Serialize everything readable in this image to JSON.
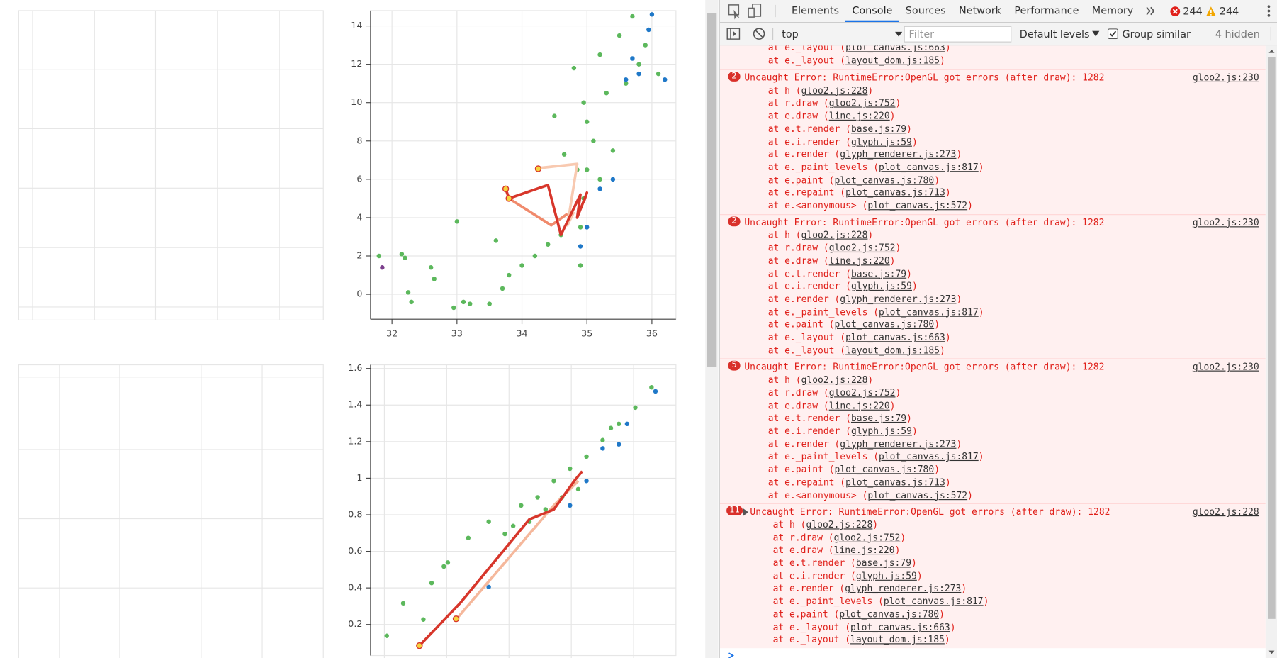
{
  "chart_data": [
    {
      "type": "scatter",
      "xlim": [
        31.67,
        36.37
      ],
      "ylim": [
        -1.3,
        14.8
      ],
      "xticks": [
        32,
        33,
        34,
        35,
        36
      ],
      "yticks": [
        0,
        2,
        4,
        6,
        8,
        10,
        12,
        14
      ],
      "grid": true,
      "series": [
        {
          "style": "points",
          "color": "#5cb85c",
          "x": [
            31.8,
            32.15,
            32.2,
            32.25,
            32.3,
            32.6,
            32.65,
            32.95,
            33.0,
            33.1,
            33.2,
            33.5,
            33.6,
            33.7,
            33.8,
            34.0,
            34.2,
            34.4,
            34.5,
            34.6,
            34.65,
            34.8,
            34.85,
            34.9,
            34.9,
            34.95,
            35.0,
            35.1,
            35.2,
            35.3,
            35.4,
            35.5,
            35.6,
            35.7,
            35.8,
            35.9,
            36.1,
            35.0,
            34.95,
            35.2
          ],
          "values": [
            2.0,
            2.1,
            1.9,
            0.1,
            -0.4,
            1.4,
            0.8,
            -0.7,
            3.8,
            -0.4,
            -0.5,
            -0.5,
            2.8,
            0.3,
            1.0,
            1.5,
            2.0,
            2.6,
            9.3,
            3.1,
            7.3,
            11.8,
            6.5,
            1.5,
            3.5,
            5.0,
            9.0,
            8.0,
            12.5,
            10.5,
            7.5,
            13.5,
            11.0,
            14.5,
            12.0,
            13.0,
            11.5,
            6.5,
            10.0,
            6.0
          ]
        },
        {
          "style": "points",
          "color": "#1f78c8",
          "x": [
            34.9,
            35.0,
            35.2,
            35.4,
            35.6,
            35.8,
            35.95,
            36.0,
            36.2,
            35.7
          ],
          "values": [
            2.5,
            3.5,
            5.5,
            6.0,
            11.2,
            11.5,
            13.8,
            14.6,
            11.2,
            12.3
          ]
        },
        {
          "style": "points",
          "color": "#7b3f8c",
          "x": [
            31.85
          ],
          "values": [
            1.4
          ]
        },
        {
          "style": "line",
          "color": "#f8c9b0",
          "x": [
            34.3,
            34.85,
            34.7,
            34.8
          ],
          "values": [
            6.6,
            6.8,
            3.6,
            4.3
          ]
        },
        {
          "style": "line",
          "color": "#f08a6c",
          "x": [
            33.8,
            34.45,
            34.7
          ],
          "values": [
            5.0,
            3.6,
            4.2
          ]
        },
        {
          "style": "line",
          "color": "#d7362b",
          "x": [
            33.75,
            33.8,
            34.4,
            34.6,
            34.9,
            34.85,
            35.0,
            34.95
          ],
          "values": [
            5.5,
            5.0,
            5.7,
            3.1,
            5.2,
            4.0,
            5.3,
            4.8
          ]
        },
        {
          "style": "points",
          "color": "#f7d33c",
          "edge": "#d7362b",
          "x": [
            33.75,
            33.8,
            34.25
          ],
          "values": [
            5.5,
            5.0,
            6.55
          ]
        }
      ]
    },
    {
      "type": "scatter",
      "xlim": [
        0,
        1
      ],
      "ylim": [
        0.03,
        1.62
      ],
      "yticks": [
        0.2,
        0.4,
        0.6,
        0.8,
        1,
        1.2,
        1.4,
        1.6
      ],
      "grid": true,
      "series": [
        {
          "style": "points",
          "color": "#5cb85c",
          "x": [
            0.053,
            0.107,
            0.173,
            0.2,
            0.253,
            0.32,
            0.387,
            0.44,
            0.493,
            0.547,
            0.6,
            0.653,
            0.707,
            0.76,
            0.813,
            0.867,
            0.92,
            0.52,
            0.573,
            0.627,
            0.68,
            0.24,
            0.467,
            0.787
          ],
          "values": [
            0.138,
            0.316,
            0.227,
            0.427,
            0.539,
            0.673,
            0.762,
            0.695,
            0.851,
            0.895,
            0.985,
            1.052,
            1.118,
            1.208,
            1.297,
            1.386,
            1.497,
            0.762,
            0.829,
            0.895,
            0.94,
            0.517,
            0.739,
            1.274
          ]
        },
        {
          "style": "points",
          "color": "#1f78c8",
          "x": [
            0.387,
            0.653,
            0.707,
            0.76,
            0.84,
            0.933,
            0.813
          ],
          "values": [
            0.405,
            0.851,
            0.985,
            1.163,
            1.297,
            1.475,
            1.185
          ]
        },
        {
          "style": "line",
          "color": "#f5b89c",
          "x": [
            0.28,
            0.44,
            0.6,
            0.68
          ],
          "values": [
            0.227,
            0.539,
            0.851,
            0.985
          ]
        },
        {
          "style": "line",
          "color": "#d7362b",
          "x": [
            0.16,
            0.293,
            0.52,
            0.6,
            0.667,
            0.693
          ],
          "values": [
            0.084,
            0.316,
            0.775,
            0.829,
            0.985,
            1.038
          ]
        },
        {
          "style": "points",
          "color": "#f7d33c",
          "edge": "#d7362b",
          "x": [
            0.16,
            0.28
          ],
          "values": [
            0.084,
            0.231
          ]
        }
      ]
    }
  ],
  "devtools": {
    "tabs": [
      "Elements",
      "Console",
      "Sources",
      "Network",
      "Performance",
      "Memory"
    ],
    "active_tab": "Console",
    "error_count": "244",
    "warning_count": "244",
    "context": "top",
    "filter_placeholder": "Filter",
    "levels": "Default levels",
    "group_similar": "Group similar",
    "hidden": "4 hidden",
    "partial_stack": [
      {
        "call": "at e._layout (",
        "file": "plot_canvas.js:663",
        "end": ")"
      },
      {
        "call": "at e._layout (",
        "file": "layout_dom.js:185",
        "end": ")"
      }
    ],
    "messages": [
      {
        "count": "2",
        "text": "Uncaught Error: RuntimeError:OpenGL got errors (after draw): 1282",
        "source": "gloo2.js:230",
        "stack": [
          {
            "call": "at h (",
            "file": "gloo2.js:228",
            "end": ")"
          },
          {
            "call": "at r.draw (",
            "file": "gloo2.js:752",
            "end": ")"
          },
          {
            "call": "at e.draw (",
            "file": "line.js:220",
            "end": ")"
          },
          {
            "call": "at e.t.render (",
            "file": "base.js:79",
            "end": ")"
          },
          {
            "call": "at e.i.render (",
            "file": "glyph.js:59",
            "end": ")"
          },
          {
            "call": "at e.render (",
            "file": "glyph_renderer.js:273",
            "end": ")"
          },
          {
            "call": "at e._paint_levels (",
            "file": "plot_canvas.js:817",
            "end": ")"
          },
          {
            "call": "at e.paint (",
            "file": "plot_canvas.js:780",
            "end": ")"
          },
          {
            "call": "at e.repaint (",
            "file": "plot_canvas.js:713",
            "end": ")"
          },
          {
            "call": "at e.<anonymous> (",
            "file": "plot_canvas.js:572",
            "end": ")"
          }
        ]
      },
      {
        "count": "2",
        "text": "Uncaught Error: RuntimeError:OpenGL got errors (after draw): 1282",
        "source": "gloo2.js:230",
        "stack": [
          {
            "call": "at h (",
            "file": "gloo2.js:228",
            "end": ")"
          },
          {
            "call": "at r.draw (",
            "file": "gloo2.js:752",
            "end": ")"
          },
          {
            "call": "at e.draw (",
            "file": "line.js:220",
            "end": ")"
          },
          {
            "call": "at e.t.render (",
            "file": "base.js:79",
            "end": ")"
          },
          {
            "call": "at e.i.render (",
            "file": "glyph.js:59",
            "end": ")"
          },
          {
            "call": "at e.render (",
            "file": "glyph_renderer.js:273",
            "end": ")"
          },
          {
            "call": "at e._paint_levels (",
            "file": "plot_canvas.js:817",
            "end": ")"
          },
          {
            "call": "at e.paint (",
            "file": "plot_canvas.js:780",
            "end": ")"
          },
          {
            "call": "at e._layout (",
            "file": "plot_canvas.js:663",
            "end": ")"
          },
          {
            "call": "at e._layout (",
            "file": "layout_dom.js:185",
            "end": ")"
          }
        ]
      },
      {
        "count": "5",
        "text": "Uncaught Error: RuntimeError:OpenGL got errors (after draw): 1282",
        "source": "gloo2.js:230",
        "stack": [
          {
            "call": "at h (",
            "file": "gloo2.js:228",
            "end": ")"
          },
          {
            "call": "at r.draw (",
            "file": "gloo2.js:752",
            "end": ")"
          },
          {
            "call": "at e.draw (",
            "file": "line.js:220",
            "end": ")"
          },
          {
            "call": "at e.t.render (",
            "file": "base.js:79",
            "end": ")"
          },
          {
            "call": "at e.i.render (",
            "file": "glyph.js:59",
            "end": ")"
          },
          {
            "call": "at e.render (",
            "file": "glyph_renderer.js:273",
            "end": ")"
          },
          {
            "call": "at e._paint_levels (",
            "file": "plot_canvas.js:817",
            "end": ")"
          },
          {
            "call": "at e.paint (",
            "file": "plot_canvas.js:780",
            "end": ")"
          },
          {
            "call": "at e.repaint (",
            "file": "plot_canvas.js:713",
            "end": ")"
          },
          {
            "call": "at e.<anonymous> (",
            "file": "plot_canvas.js:572",
            "end": ")"
          }
        ]
      },
      {
        "count": "11",
        "expandable": true,
        "text": "Uncaught Error: RuntimeError:OpenGL got errors (after draw): 1282",
        "source": "gloo2.js:228",
        "stack": [
          {
            "call": "at h (",
            "file": "gloo2.js:228",
            "end": ")"
          },
          {
            "call": "at r.draw (",
            "file": "gloo2.js:752",
            "end": ")"
          },
          {
            "call": "at e.draw (",
            "file": "line.js:220",
            "end": ")"
          },
          {
            "call": "at e.t.render (",
            "file": "base.js:79",
            "end": ")"
          },
          {
            "call": "at e.i.render (",
            "file": "glyph.js:59",
            "end": ")"
          },
          {
            "call": "at e.render (",
            "file": "glyph_renderer.js:273",
            "end": ")"
          },
          {
            "call": "at e._paint_levels (",
            "file": "plot_canvas.js:817",
            "end": ")"
          },
          {
            "call": "at e.paint (",
            "file": "plot_canvas.js:780",
            "end": ")"
          },
          {
            "call": "at e._layout (",
            "file": "plot_canvas.js:663",
            "end": ")"
          },
          {
            "call": "at e._layout (",
            "file": "layout_dom.js:185",
            "end": ")"
          }
        ]
      }
    ]
  }
}
